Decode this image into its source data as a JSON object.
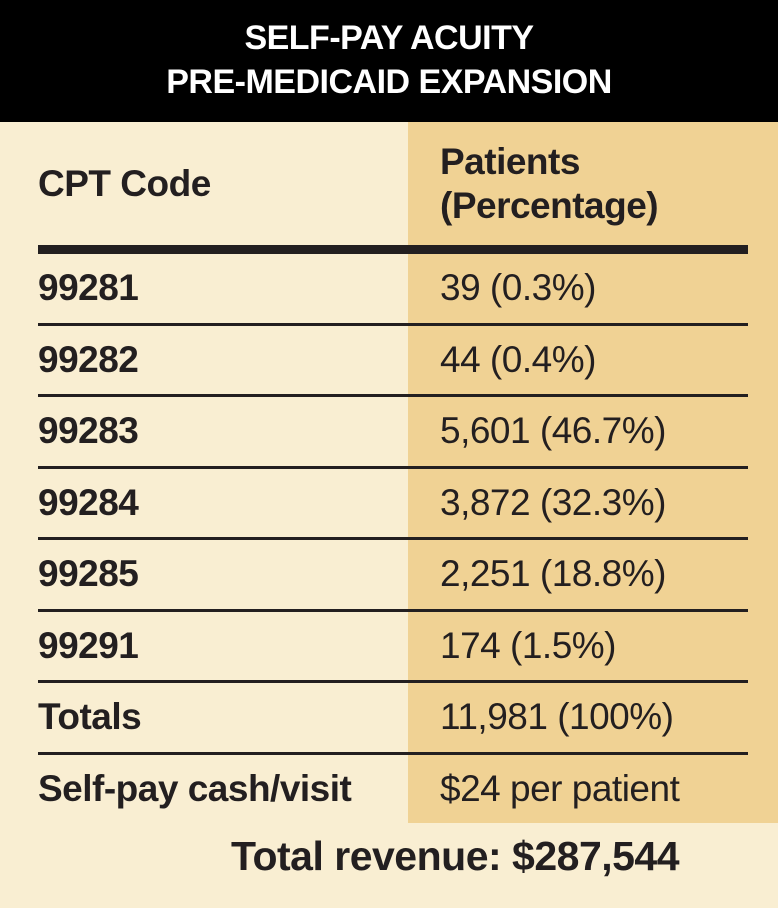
{
  "header": {
    "line1": "SELF-PAY ACUITY",
    "line2": "PRE-MEDICAID EXPANSION"
  },
  "table": {
    "columns": {
      "col1": "CPT Code",
      "col2_line1": "Patients",
      "col2_line2": "(Percentage)"
    },
    "rows": [
      {
        "label": "99281",
        "value": "39 (0.3%)"
      },
      {
        "label": "99282",
        "value": "44 (0.4%)"
      },
      {
        "label": "99283",
        "value": "5,601 (46.7%)"
      },
      {
        "label": "99284",
        "value": "3,872 (32.3%)"
      },
      {
        "label": "99285",
        "value": "2,251 (18.8%)"
      },
      {
        "label": "99291",
        "value": "174 (1.5%)"
      },
      {
        "label": "Totals",
        "value": "11,981 (100%)"
      },
      {
        "label": "Self-pay cash/visit",
        "value": "$24 per patient"
      }
    ]
  },
  "footer": {
    "text": "Total revenue: $287,544"
  },
  "colors": {
    "band_background": "#000000",
    "band_text": "#ffffff",
    "cream_background": "#f9eed2",
    "tan_column": "#f0d294",
    "ink": "#231f20"
  },
  "chart_data": {
    "type": "table",
    "title": "SELF-PAY ACUITY PRE-MEDICAID EXPANSION",
    "columns": [
      "CPT Code",
      "Patients (Percentage)"
    ],
    "rows": [
      {
        "cpt_code": "99281",
        "patients": 39,
        "percentage": 0.3
      },
      {
        "cpt_code": "99282",
        "patients": 44,
        "percentage": 0.4
      },
      {
        "cpt_code": "99283",
        "patients": 5601,
        "percentage": 46.7
      },
      {
        "cpt_code": "99284",
        "patients": 3872,
        "percentage": 32.3
      },
      {
        "cpt_code": "99285",
        "patients": 2251,
        "percentage": 18.8
      },
      {
        "cpt_code": "99291",
        "patients": 174,
        "percentage": 1.5
      }
    ],
    "totals": {
      "patients": 11981,
      "percentage": 100
    },
    "self_pay_cash_per_visit": "$24 per patient",
    "total_revenue": "$287,544"
  }
}
